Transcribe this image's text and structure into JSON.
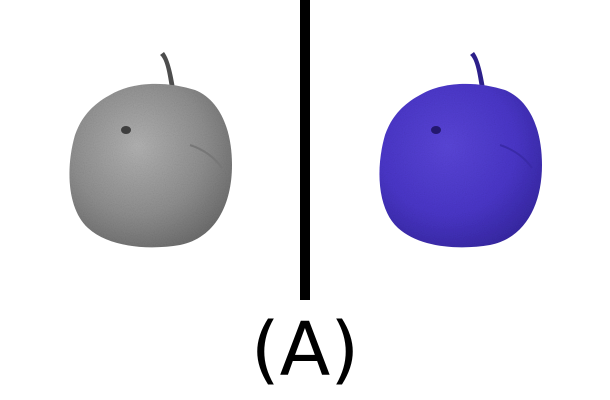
{
  "image": {
    "caption": "(A)",
    "panels": [
      {
        "subject": "pear",
        "tint": "grayscale",
        "body_color": "#8f8f8f",
        "shade_color": "#5c5c5c",
        "highlight_color": "#b8b8b8"
      },
      {
        "subject": "pear",
        "tint": "blue",
        "body_color": "#4a36c8",
        "shade_color": "#2c1f8a",
        "highlight_color": "#6a57e0"
      }
    ],
    "divider_color": "#000000"
  }
}
